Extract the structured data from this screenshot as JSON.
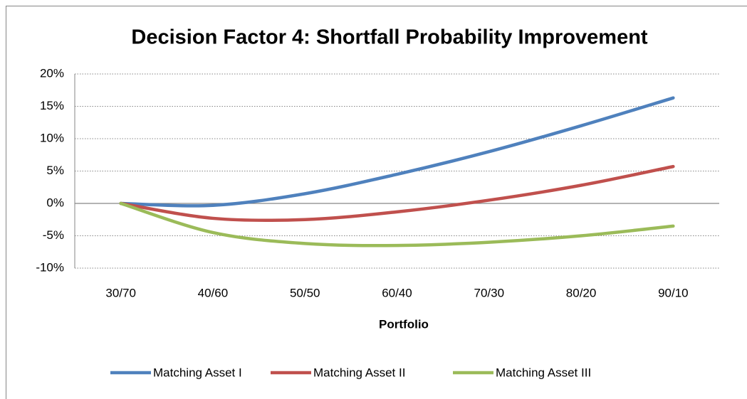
{
  "chart_data": {
    "type": "line",
    "title": "Decision Factor 4: Shortfall Probability Improvement",
    "x_label": "Portfolio",
    "categories": [
      "30/70",
      "40/60",
      "50/50",
      "60/40",
      "70/30",
      "80/20",
      "90/10"
    ],
    "series": [
      {
        "name": "Matching Asset I",
        "color": "#4f81bd",
        "values": [
          0,
          -0.3,
          1.5,
          4.5,
          8,
          12,
          16.3
        ]
      },
      {
        "name": "Matching Asset II",
        "color": "#c0504d",
        "values": [
          0,
          -2.3,
          -2.5,
          -1.3,
          0.5,
          2.8,
          5.7
        ]
      },
      {
        "name": "Matching Asset III",
        "color": "#9bbb59",
        "values": [
          0,
          -4.5,
          -6.2,
          -6.5,
          -6,
          -5,
          -3.5
        ]
      }
    ],
    "ylim": [
      -10,
      20
    ],
    "yticks": [
      {
        "value": -10,
        "label": "-10%"
      },
      {
        "value": -5,
        "label": "-5%"
      },
      {
        "value": 0,
        "label": "0%"
      },
      {
        "value": 5,
        "label": "5%"
      },
      {
        "value": 10,
        "label": "10%"
      },
      {
        "value": 15,
        "label": "15%"
      },
      {
        "value": 20,
        "label": "20%"
      }
    ],
    "grid": true,
    "legend": "bottom"
  }
}
